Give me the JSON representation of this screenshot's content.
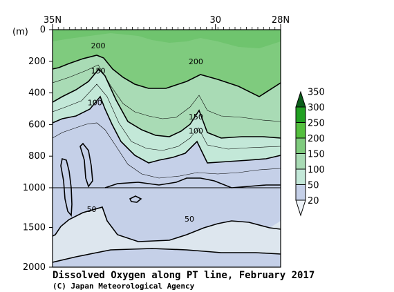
{
  "chart_data": {
    "type": "contour",
    "title": "Dissolved Oxygen along PT line, February 2017",
    "credit": "(C) Japan Meteorological Agency",
    "y_unit": "(m)",
    "x_tick_labels": [
      "35N",
      "30",
      "28N"
    ],
    "x_ticks": [
      35,
      30,
      28
    ],
    "xlim": [
      35,
      28
    ],
    "y_ticks_upper": [
      0,
      200,
      400,
      600,
      800,
      1000
    ],
    "y_ticks_lower": [
      1500,
      2000
    ],
    "ylim": [
      0,
      2000
    ],
    "colorbar_levels": [
      20,
      50,
      100,
      150,
      200,
      250,
      300,
      350
    ],
    "colorbar_colors": [
      "#eef3f8",
      "#c5d0e8",
      "#c3e8d8",
      "#a9dbb5",
      "#7fcb7e",
      "#54bf3e",
      "#21a022",
      "#0b5d1a"
    ],
    "contour_labels": [
      {
        "value": "200",
        "lat": 33.6,
        "depth": 100
      },
      {
        "value": "200",
        "lat": 30.6,
        "depth": 200
      },
      {
        "value": "150",
        "lat": 33.6,
        "depth": 260
      },
      {
        "value": "150",
        "lat": 30.6,
        "depth": 550
      },
      {
        "value": "100",
        "lat": 33.7,
        "depth": 460
      },
      {
        "value": "100",
        "lat": 30.6,
        "depth": 640
      },
      {
        "value": "50",
        "lat": 33.8,
        "depth": 1270
      },
      {
        "value": "50",
        "lat": 30.8,
        "depth": 1390
      }
    ]
  }
}
